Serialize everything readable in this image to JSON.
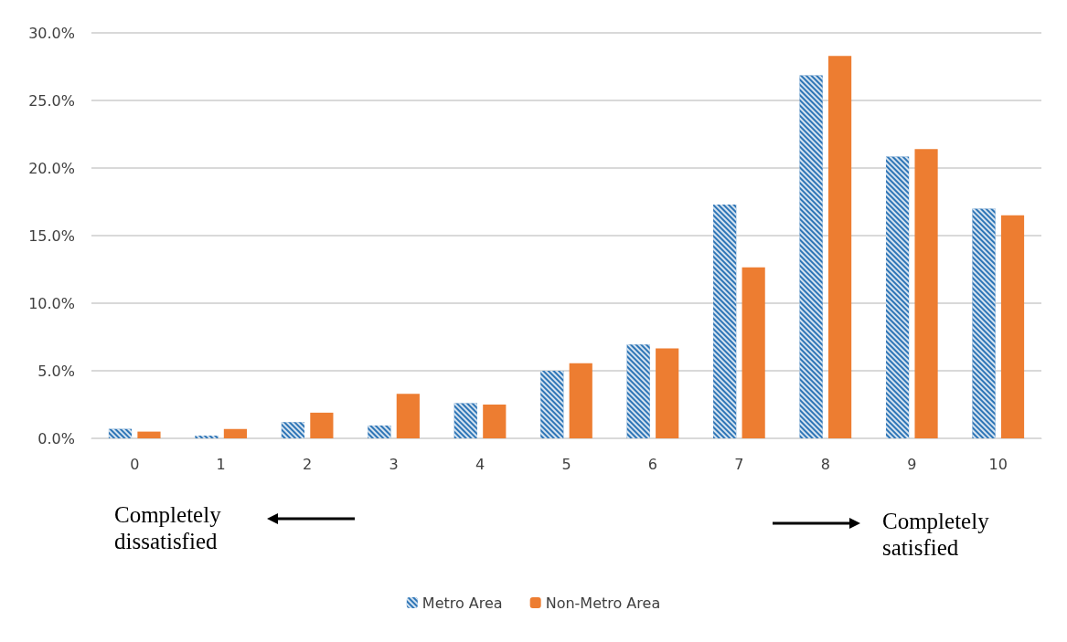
{
  "chart_data": {
    "type": "bar",
    "categories": [
      "0",
      "1",
      "2",
      "3",
      "4",
      "5",
      "6",
      "7",
      "8",
      "9",
      "10"
    ],
    "series": [
      {
        "name": "Metro Area",
        "color": "#2e75b6",
        "values": [
          0.7,
          0.2,
          1.2,
          0.95,
          2.6,
          5.0,
          6.95,
          17.3,
          26.85,
          20.85,
          17.0
        ]
      },
      {
        "name": "Non-Metro Area",
        "color": "#ed7d31",
        "values": [
          0.5,
          0.7,
          1.9,
          3.3,
          2.5,
          5.55,
          6.65,
          12.65,
          28.3,
          21.4,
          16.5
        ]
      }
    ],
    "ylim": [
      0,
      30
    ],
    "yticks": [
      {
        "value": 0,
        "label": "0.0%"
      },
      {
        "value": 5,
        "label": "5.0%"
      },
      {
        "value": 10,
        "label": "10.0%"
      },
      {
        "value": 15,
        "label": "15.0%"
      },
      {
        "value": 20,
        "label": "20.0%"
      },
      {
        "value": 25,
        "label": "25.0%"
      },
      {
        "value": 30,
        "label": "30.0%"
      }
    ],
    "grid": "y",
    "legend": "bottom",
    "annotations": [
      "Completely dissatisfied",
      "Completely satisfied"
    ]
  }
}
